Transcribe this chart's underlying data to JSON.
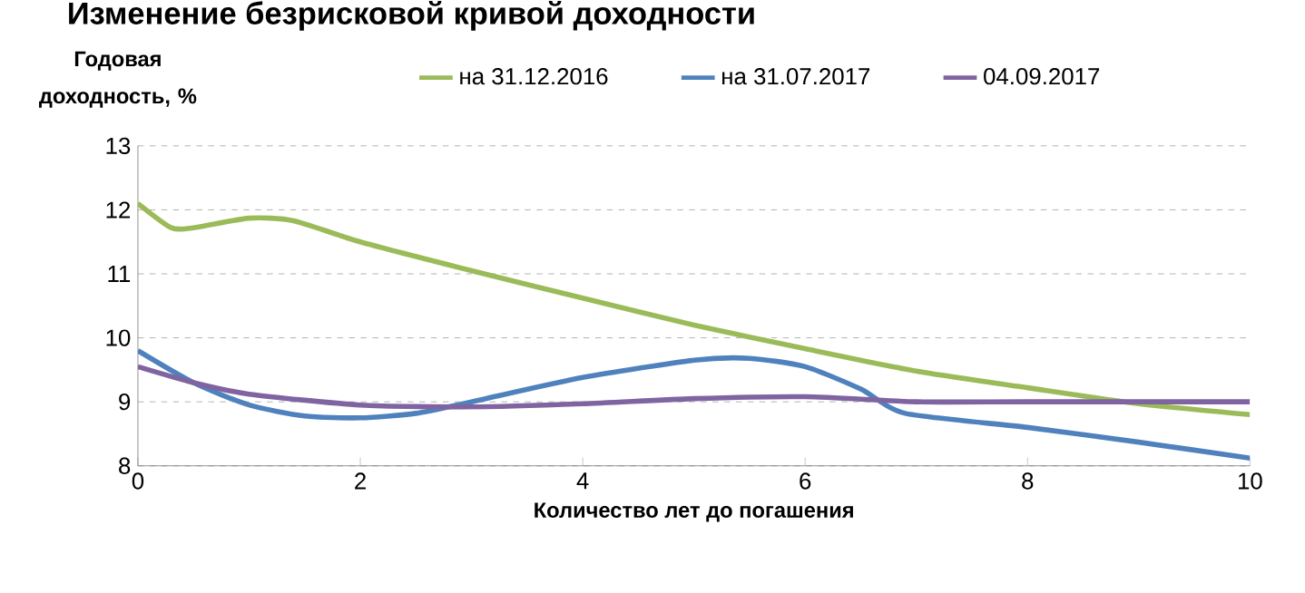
{
  "chart_data": {
    "type": "line",
    "title": "Изменение безрисковой кривой доходности",
    "xlabel": "Количество лет до погашения",
    "ylabel": "Годовая доходность, %",
    "xlim": [
      0,
      10
    ],
    "xticks": [
      0,
      2,
      4,
      6,
      8,
      10
    ],
    "ylim": [
      8,
      13
    ],
    "yticks": [
      8,
      9,
      10,
      11,
      12,
      13
    ],
    "grid": "y",
    "legend": "top",
    "marker": "none",
    "line_style": "solid",
    "series": [
      {
        "name": "на 31.12.2016",
        "color": "#9bbb59",
        "x": [
          0,
          0.3,
          0.5,
          1,
          1.4,
          2,
          3,
          4,
          5,
          6,
          7,
          8,
          9,
          10
        ],
        "values": [
          12.1,
          11.72,
          11.72,
          11.87,
          11.83,
          11.5,
          11.05,
          10.62,
          10.2,
          9.83,
          9.48,
          9.22,
          8.97,
          8.8
        ]
      },
      {
        "name": "на 31.07.2017",
        "color": "#4f81bd",
        "x": [
          0,
          0.5,
          1,
          1.5,
          2,
          2.5,
          3,
          4,
          5,
          5.5,
          6,
          6.5,
          6.9,
          8,
          9,
          10
        ],
        "values": [
          9.8,
          9.3,
          8.95,
          8.78,
          8.75,
          8.82,
          9.0,
          9.38,
          9.65,
          9.68,
          9.55,
          9.2,
          8.82,
          8.6,
          8.37,
          8.12
        ]
      },
      {
        "name": "04.09.2017",
        "color": "#8064a2",
        "x": [
          0,
          0.5,
          1,
          2,
          3,
          4,
          5,
          6,
          7,
          8,
          10
        ],
        "values": [
          9.55,
          9.3,
          9.12,
          8.95,
          8.92,
          8.97,
          9.05,
          9.08,
          9.0,
          9.0,
          9.0
        ]
      }
    ]
  }
}
